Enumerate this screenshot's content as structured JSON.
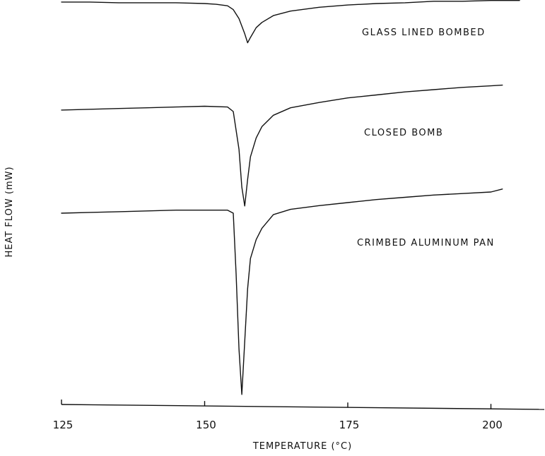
{
  "chart_data": {
    "type": "line",
    "xlabel": "TEMPERATURE (°C)",
    "ylabel": "HEAT FLOW (mW)",
    "xlim": [
      125,
      210
    ],
    "xticks": [
      125,
      150,
      175,
      200
    ],
    "grid": false,
    "series": [
      {
        "name": "GLASS LINED BOMBED",
        "x": [
          125,
          130,
          135,
          140,
          145,
          150,
          152,
          154,
          155,
          156,
          157,
          157.5,
          158,
          159,
          160,
          162,
          165,
          170,
          175,
          180,
          185,
          190,
          195,
          200,
          205
        ],
        "y": [
          0.2,
          0.2,
          0.1,
          0.1,
          0.1,
          0.0,
          -0.1,
          -0.3,
          -0.8,
          -2.0,
          -4.0,
          -5.2,
          -4.5,
          -3.2,
          -2.5,
          -1.6,
          -1.0,
          -0.5,
          -0.2,
          0.0,
          0.1,
          0.3,
          0.3,
          0.4,
          0.4
        ]
      },
      {
        "name": "CLOSED BOMB",
        "x": [
          125,
          130,
          135,
          140,
          145,
          150,
          154,
          155,
          156,
          156.5,
          157,
          157.5,
          158,
          159,
          160,
          162,
          165,
          170,
          175,
          180,
          185,
          190,
          195,
          200,
          202
        ],
        "y": [
          0.2,
          0.3,
          0.4,
          0.5,
          0.6,
          0.7,
          0.6,
          0.0,
          -5.0,
          -10.0,
          -12.5,
          -9.0,
          -6.0,
          -3.5,
          -2.0,
          -0.5,
          0.5,
          1.2,
          1.8,
          2.2,
          2.6,
          2.9,
          3.2,
          3.4,
          3.5
        ]
      },
      {
        "name": "CRIMBED ALUMINUM PAN",
        "x": [
          125,
          130,
          135,
          140,
          145,
          150,
          154,
          155,
          155.5,
          156,
          156.5,
          157,
          157.5,
          158,
          159,
          160,
          162,
          165,
          170,
          175,
          180,
          185,
          190,
          195,
          200,
          202
        ],
        "y": [
          0.0,
          0.1,
          0.2,
          0.3,
          0.4,
          0.4,
          0.4,
          0.0,
          -8.0,
          -18.0,
          -24.0,
          -17.0,
          -10.0,
          -6.0,
          -3.5,
          -2.0,
          -0.2,
          0.5,
          1.0,
          1.4,
          1.8,
          2.1,
          2.4,
          2.6,
          2.8,
          3.2
        ]
      }
    ]
  }
}
